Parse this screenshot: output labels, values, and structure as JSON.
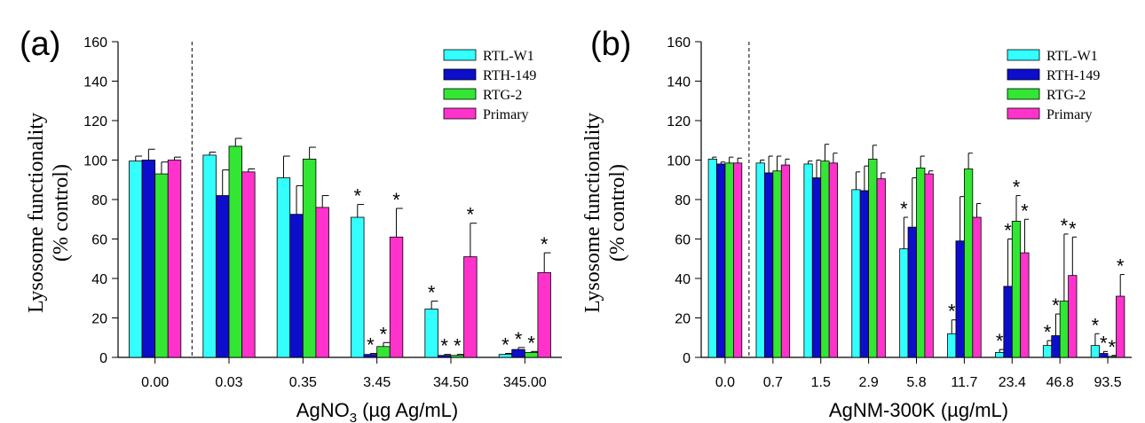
{
  "ylabel_line1": "Lysosome functionality",
  "ylabel_line2": "(% control)",
  "series_colors": [
    "#33ffff",
    "#0d0dcc",
    "#33e633",
    "#ff33cc"
  ],
  "chart_data": [
    {
      "type": "bar",
      "panel_label": "(a)",
      "xlabel_main": "AgNO",
      "xlabel_sub": "3",
      "xlabel_rest": " (µg Ag/mL)",
      "ylim": [
        0,
        160
      ],
      "yticks": [
        0,
        20,
        40,
        60,
        80,
        100,
        120,
        140,
        160
      ],
      "categories": [
        "0.00",
        "0.03",
        "0.35",
        "3.45",
        "34.50",
        "345.00"
      ],
      "control_divider_after_index": 0,
      "legend_position": "top-right",
      "series": [
        {
          "name": "RTL-W1",
          "values": [
            99.5,
            102.5,
            91,
            71,
            24.5,
            1.5
          ],
          "errors": [
            2.5,
            1.5,
            11,
            6.5,
            4,
            0.5
          ],
          "sig": [
            false,
            false,
            false,
            true,
            true,
            true
          ]
        },
        {
          "name": "RTH-149",
          "values": [
            100,
            82,
            72.5,
            1.5,
            1,
            4
          ],
          "errors": [
            5.5,
            13,
            14.5,
            0.5,
            0.5,
            1
          ],
          "sig": [
            false,
            false,
            false,
            true,
            true,
            true
          ]
        },
        {
          "name": "RTG-2",
          "values": [
            93,
            107,
            100.5,
            5.5,
            1,
            2.5
          ],
          "errors": [
            6,
            4,
            6,
            2,
            0.5,
            0.5
          ],
          "sig": [
            false,
            false,
            false,
            true,
            true,
            true
          ]
        },
        {
          "name": "Primary",
          "values": [
            100,
            94,
            76,
            61,
            51,
            43
          ],
          "errors": [
            1.5,
            1.5,
            6,
            14.5,
            17,
            10
          ],
          "sig": [
            false,
            false,
            false,
            true,
            true,
            true
          ]
        }
      ]
    },
    {
      "type": "bar",
      "panel_label": "(b)",
      "xlabel_main": "AgNM-300K (µg/mL)",
      "xlabel_sub": "",
      "xlabel_rest": "",
      "ylim": [
        0,
        160
      ],
      "yticks": [
        0,
        20,
        40,
        60,
        80,
        100,
        120,
        140,
        160
      ],
      "categories": [
        "0.0",
        "0.7",
        "1.5",
        "2.9",
        "5.8",
        "11.7",
        "23.4",
        "46.8",
        "93.5"
      ],
      "control_divider_after_index": 0,
      "legend_position": "top-right",
      "series": [
        {
          "name": "RTL-W1",
          "values": [
            100.5,
            98.5,
            98,
            85,
            55,
            12,
            2.5,
            6,
            6
          ],
          "errors": [
            1,
            1.5,
            1.5,
            9,
            16,
            7,
            1.5,
            2.5,
            6
          ],
          "sig": [
            false,
            false,
            false,
            false,
            true,
            true,
            true,
            true,
            true
          ]
        },
        {
          "name": "RTH-149",
          "values": [
            98,
            93.5,
            91,
            84.5,
            66,
            59,
            36,
            11,
            2
          ],
          "errors": [
            1,
            8.5,
            9,
            12.5,
            25,
            22.5,
            24,
            11,
            1
          ],
          "sig": [
            false,
            false,
            false,
            false,
            false,
            false,
            true,
            true,
            true
          ]
        },
        {
          "name": "RTG-2",
          "values": [
            98.5,
            94.5,
            99.5,
            100.5,
            96,
            95.5,
            69,
            28.5,
            0.5
          ],
          "errors": [
            3,
            7.5,
            8.5,
            7,
            6,
            8,
            13,
            34,
            0.5
          ],
          "sig": [
            false,
            false,
            false,
            false,
            false,
            false,
            true,
            true,
            true
          ]
        },
        {
          "name": "Primary",
          "values": [
            98.5,
            97.5,
            98.5,
            90.5,
            93,
            71,
            53,
            41.5,
            31
          ],
          "errors": [
            2.5,
            3,
            5,
            3,
            1.5,
            7,
            17,
            19.5,
            11
          ],
          "sig": [
            false,
            false,
            false,
            false,
            false,
            false,
            true,
            true,
            true
          ]
        }
      ]
    }
  ]
}
